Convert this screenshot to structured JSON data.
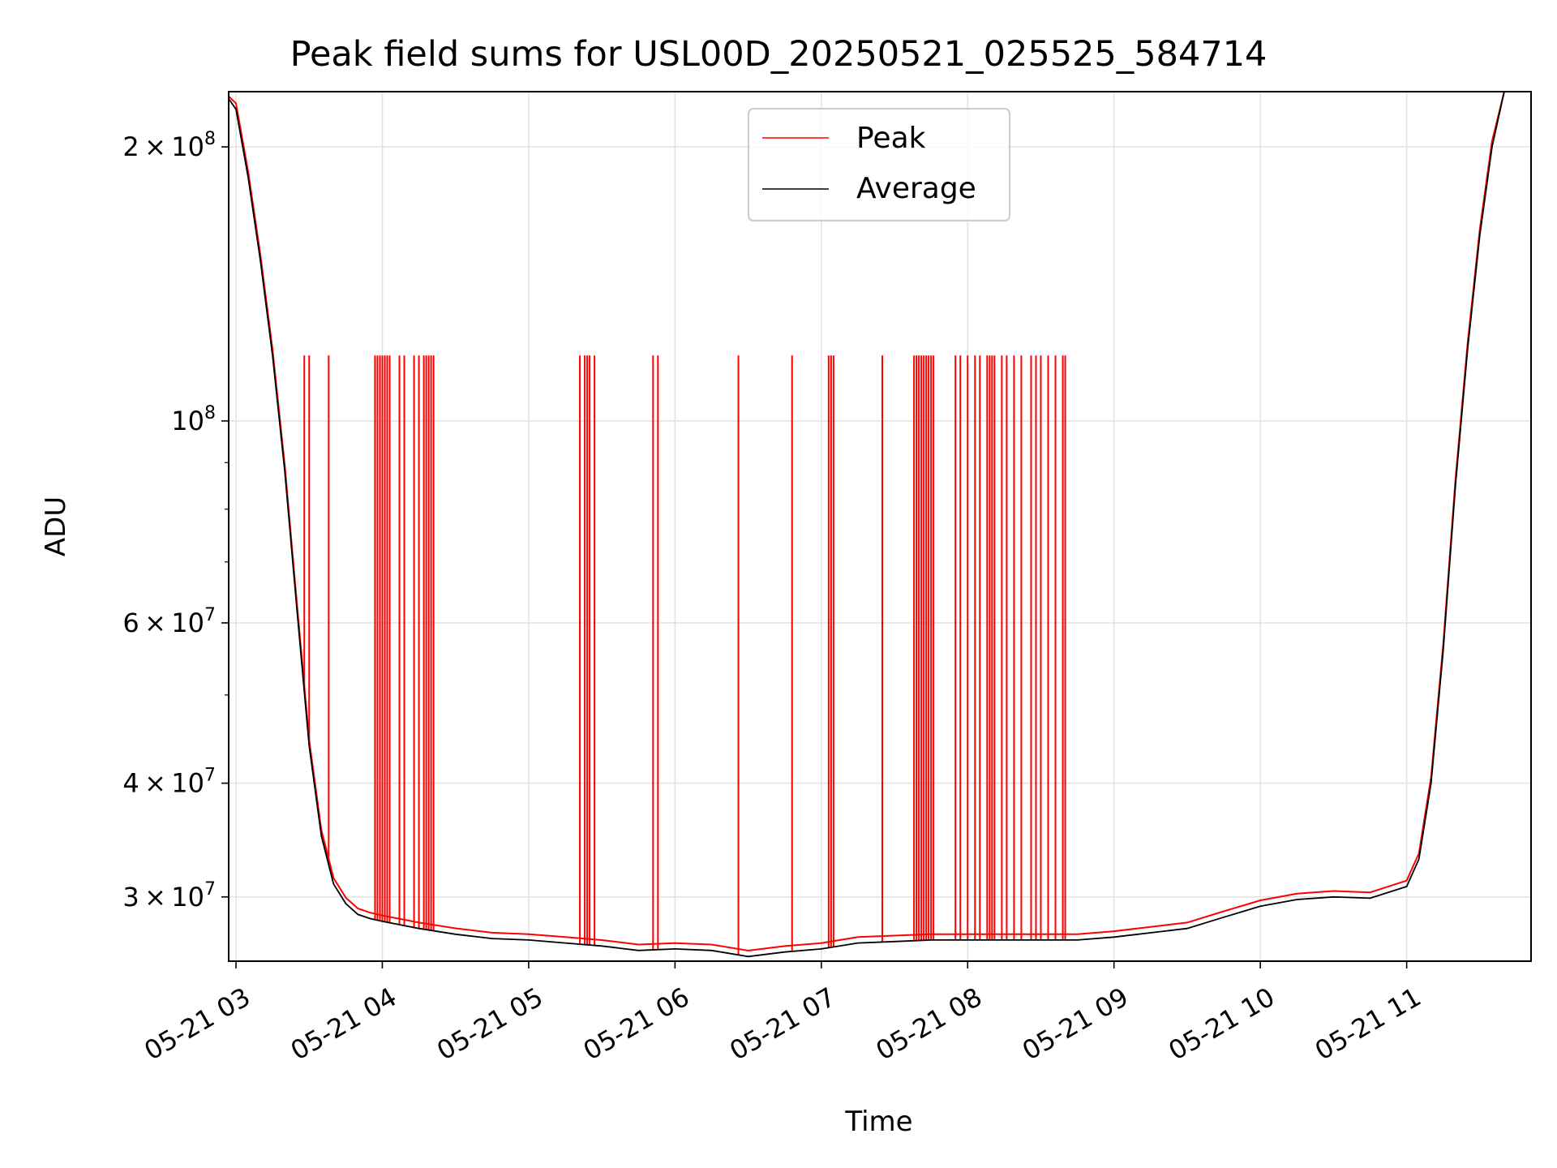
{
  "chart_data": {
    "type": "line",
    "title": "Peak field sums for USL00D_20250521_025525_584714",
    "xlabel": "Time",
    "ylabel": "ADU",
    "yscale": "log",
    "ylim": [
      25500000,
      230000000
    ],
    "xlim": [
      "2025-05-21 02:57",
      "2025-05-21 11:51"
    ],
    "grid": true,
    "legend_placement": "upper center",
    "colors": {
      "Peak": "#ff0000",
      "Average": "#000000"
    },
    "x_ticks": [
      "05-21 03",
      "05-21 04",
      "05-21 05",
      "05-21 06",
      "05-21 07",
      "05-21 08",
      "05-21 09",
      "05-21 10",
      "05-21 11"
    ],
    "y_ticks": [
      {
        "value": 30000000,
        "mantissa": "3",
        "exponent": "7"
      },
      {
        "value": 40000000,
        "mantissa": "4",
        "exponent": "7"
      },
      {
        "value": 60000000,
        "mantissa": "6",
        "exponent": "7"
      },
      {
        "value": 100000000,
        "mantissa": "",
        "exponent": "8"
      },
      {
        "value": 200000000,
        "mantissa": "2",
        "exponent": "8"
      }
    ],
    "series": [
      {
        "name": "Average",
        "x": [
          "2025-05-21 02:55",
          "2025-05-21 03:00",
          "2025-05-21 03:05",
          "2025-05-21 03:10",
          "2025-05-21 03:15",
          "2025-05-21 03:20",
          "2025-05-21 03:25",
          "2025-05-21 03:30",
          "2025-05-21 03:35",
          "2025-05-21 03:40",
          "2025-05-21 03:45",
          "2025-05-21 03:50",
          "2025-05-21 03:55",
          "2025-05-21 04:00",
          "2025-05-21 04:15",
          "2025-05-21 04:30",
          "2025-05-21 04:45",
          "2025-05-21 05:00",
          "2025-05-21 05:15",
          "2025-05-21 05:30",
          "2025-05-21 05:45",
          "2025-05-21 06:00",
          "2025-05-21 06:15",
          "2025-05-21 06:30",
          "2025-05-21 06:45",
          "2025-05-21 07:00",
          "2025-05-21 07:15",
          "2025-05-21 07:30",
          "2025-05-21 07:45",
          "2025-05-21 08:00",
          "2025-05-21 08:15",
          "2025-05-21 08:30",
          "2025-05-21 08:45",
          "2025-05-21 09:00",
          "2025-05-21 09:15",
          "2025-05-21 09:30",
          "2025-05-21 09:45",
          "2025-05-21 10:00",
          "2025-05-21 10:15",
          "2025-05-21 10:30",
          "2025-05-21 10:45",
          "2025-05-21 11:00",
          "2025-05-21 11:05",
          "2025-05-21 11:10",
          "2025-05-21 11:15",
          "2025-05-21 11:20",
          "2025-05-21 11:25",
          "2025-05-21 11:30",
          "2025-05-21 11:35",
          "2025-05-21 11:40"
        ],
        "values": [
          235000000,
          220000000,
          185000000,
          150000000,
          118000000,
          88000000,
          62000000,
          44000000,
          35000000,
          31000000,
          29500000,
          28700000,
          28400000,
          28200000,
          27700000,
          27300000,
          27000000,
          26900000,
          26700000,
          26500000,
          26200000,
          26300000,
          26200000,
          25800000,
          26100000,
          26300000,
          26700000,
          26800000,
          26900000,
          26900000,
          26900000,
          26900000,
          26900000,
          27100000,
          27400000,
          27700000,
          28500000,
          29300000,
          29800000,
          30000000,
          29900000,
          30800000,
          33000000,
          40000000,
          56000000,
          85000000,
          120000000,
          160000000,
          200000000,
          240000000
        ]
      },
      {
        "name": "Peak",
        "baseline_note": "follows Average except at spikes",
        "spike_times": [
          "2025-05-21 03:28",
          "2025-05-21 03:30",
          "2025-05-21 03:38",
          "2025-05-21 03:57",
          "2025-05-21 03:58",
          "2025-05-21 03:59",
          "2025-05-21 04:00",
          "2025-05-21 04:01",
          "2025-05-21 04:02",
          "2025-05-21 04:03",
          "2025-05-21 04:07",
          "2025-05-21 04:09",
          "2025-05-21 04:13",
          "2025-05-21 04:15",
          "2025-05-21 04:17",
          "2025-05-21 04:18",
          "2025-05-21 04:19",
          "2025-05-21 04:20",
          "2025-05-21 04:21",
          "2025-05-21 05:21",
          "2025-05-21 05:23",
          "2025-05-21 05:24",
          "2025-05-21 05:25",
          "2025-05-21 05:27",
          "2025-05-21 05:51",
          "2025-05-21 05:53",
          "2025-05-21 06:26",
          "2025-05-21 06:48",
          "2025-05-21 07:03",
          "2025-05-21 07:04",
          "2025-05-21 07:05",
          "2025-05-21 07:25",
          "2025-05-21 07:38",
          "2025-05-21 07:39",
          "2025-05-21 07:40",
          "2025-05-21 07:41",
          "2025-05-21 07:42",
          "2025-05-21 07:43",
          "2025-05-21 07:44",
          "2025-05-21 07:45",
          "2025-05-21 07:46",
          "2025-05-21 07:55",
          "2025-05-21 07:57",
          "2025-05-21 08:00",
          "2025-05-21 08:03",
          "2025-05-21 08:05",
          "2025-05-21 08:08",
          "2025-05-21 08:09",
          "2025-05-21 08:10",
          "2025-05-21 08:11",
          "2025-05-21 08:14",
          "2025-05-21 08:16",
          "2025-05-21 08:19",
          "2025-05-21 08:22",
          "2025-05-21 08:26",
          "2025-05-21 08:28",
          "2025-05-21 08:30",
          "2025-05-21 08:33",
          "2025-05-21 08:36",
          "2025-05-21 08:39",
          "2025-05-21 08:40"
        ],
        "spike_value": 118000000
      }
    ]
  }
}
